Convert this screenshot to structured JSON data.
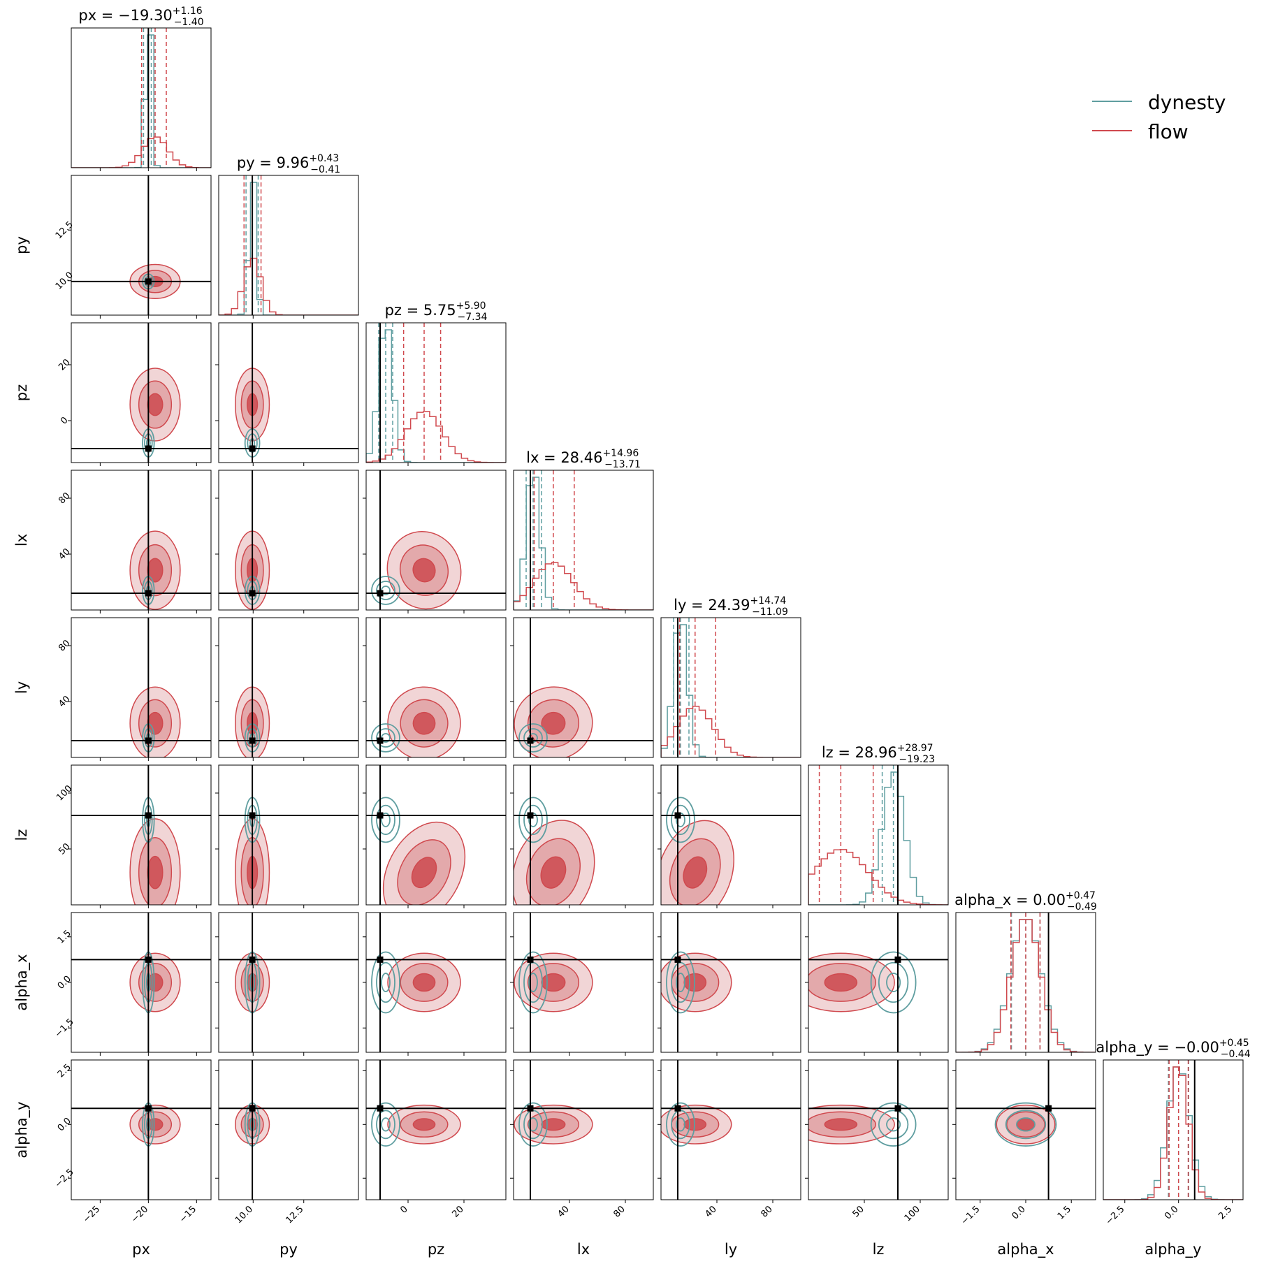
{
  "chart_data": {
    "type": "corner",
    "params": [
      "px",
      "py",
      "pz",
      "lx",
      "ly",
      "lz",
      "alpha_x",
      "alpha_y"
    ],
    "axis_labels": [
      "px",
      "py",
      "pz",
      "lx",
      "ly",
      "lz",
      "alpha_x",
      "alpha_y"
    ],
    "ranges": {
      "px": [
        -28,
        -13.5
      ],
      "py": [
        8.3,
        15.2
      ],
      "pz": [
        -15,
        35
      ],
      "lx": [
        0,
        100
      ],
      "ly": [
        0,
        100
      ],
      "lz": [
        0,
        125
      ],
      "alpha_x": [
        -2.3,
        2.3
      ],
      "alpha_y": [
        -3.5,
        3.0
      ]
    },
    "ticks": {
      "px": {
        "values": [
          -25,
          -20,
          -15
        ],
        "labels": [
          "−25",
          "−20",
          "−15"
        ]
      },
      "py": {
        "values": [
          10.0,
          12.5
        ],
        "labels": [
          "10.0",
          "12.5"
        ]
      },
      "pz": {
        "values": [
          0,
          20
        ],
        "labels": [
          "0",
          "20"
        ]
      },
      "lx": {
        "values": [
          40,
          80
        ],
        "labels": [
          "40",
          "80"
        ]
      },
      "ly": {
        "values": [
          40,
          80
        ],
        "labels": [
          "40",
          "80"
        ]
      },
      "lz": {
        "values": [
          50,
          100
        ],
        "labels": [
          "50",
          "100"
        ]
      },
      "alpha_x": {
        "values": [
          -1.5,
          0.0,
          1.5
        ],
        "labels": [
          "−1.5",
          "0.0",
          "1.5"
        ]
      },
      "alpha_y": {
        "values": [
          -2.5,
          0.0,
          2.5
        ],
        "labels": [
          "−2.5",
          "0.0",
          "2.5"
        ]
      }
    },
    "truths": {
      "px": -20,
      "py": 9.96,
      "pz": -10,
      "lx": 12,
      "ly": 12,
      "lz": 80,
      "alpha_x": 0.75,
      "alpha_y": 0.75
    },
    "titles": [
      {
        "param": "px",
        "base": "px = −19.30",
        "plus": "+1.16",
        "minus": "−1.40"
      },
      {
        "param": "py",
        "base": "py = 9.96",
        "plus": "+0.43",
        "minus": "−0.41"
      },
      {
        "param": "pz",
        "base": "pz = 5.75",
        "plus": "+5.90",
        "minus": "−7.34"
      },
      {
        "param": "lx",
        "base": "lx = 28.46",
        "plus": "+14.96",
        "minus": "−13.71"
      },
      {
        "param": "ly",
        "base": "ly = 24.39",
        "plus": "+14.74",
        "minus": "−11.09"
      },
      {
        "param": "lz",
        "base": "lz = 28.96",
        "plus": "+28.97",
        "minus": "−19.23"
      },
      {
        "param": "alpha_x",
        "base": "alpha_x = 0.00",
        "plus": "+0.47",
        "minus": "−0.49"
      },
      {
        "param": "alpha_y",
        "base": "alpha_y = −0.00",
        "plus": "+0.45",
        "minus": "−0.44"
      }
    ],
    "series": [
      {
        "name": "dynesty",
        "color": "#5f9ea0",
        "filled": false,
        "marginals": {
          "px": {
            "mean": -20.0,
            "sd": 0.3
          },
          "py": {
            "mean": 9.96,
            "sd": 0.18
          },
          "pz": {
            "mean": -8.0,
            "sd": 2.5
          },
          "lx": {
            "mean": 14.0,
            "sd": 5.0
          },
          "ly": {
            "mean": 14.0,
            "sd": 5.0
          },
          "lz": {
            "mean": 76.0,
            "sd": 10.0
          },
          "alpha_x": {
            "mean": 0.0,
            "sd": 0.5
          },
          "alpha_y": {
            "mean": 0.0,
            "sd": 0.5
          }
        },
        "quantiles": {
          "px": [
            -20.5,
            -20.0,
            -19.7
          ],
          "py": [
            9.65,
            9.96,
            10.25
          ],
          "pz": [
            -10.5,
            -8.0,
            -5.5
          ],
          "lx": [
            9.0,
            14.0,
            20.0
          ],
          "ly": [
            9.0,
            14.0,
            20.0
          ],
          "lz": [
            66.0,
            76.0,
            80.0
          ],
          "alpha_x": [
            -0.47,
            0.0,
            0.47
          ],
          "alpha_y": [
            -0.47,
            0.0,
            0.47
          ]
        }
      },
      {
        "name": "flow",
        "color": "#d0494e",
        "filled": true,
        "marginals": {
          "px": {
            "mean": -19.3,
            "sd": 1.3
          },
          "py": {
            "mean": 9.96,
            "sd": 0.42
          },
          "pz": {
            "mean": 5.75,
            "sd": 6.5
          },
          "lx": {
            "mean": 28.46,
            "sd": 14.0
          },
          "ly": {
            "mean": 24.39,
            "sd": 13.0
          },
          "lz": {
            "mean": 28.96,
            "sd": 24.0
          },
          "alpha_x": {
            "mean": 0.0,
            "sd": 0.48
          },
          "alpha_y": {
            "mean": 0.0,
            "sd": 0.45
          }
        },
        "quantiles": {
          "px": [
            -20.7,
            -19.3,
            -18.14
          ],
          "py": [
            9.55,
            9.96,
            10.39
          ],
          "pz": [
            -1.59,
            5.75,
            11.65
          ],
          "lx": [
            14.75,
            28.46,
            43.42
          ],
          "ly": [
            13.3,
            24.39,
            39.13
          ],
          "lz": [
            9.73,
            28.96,
            57.93
          ],
          "alpha_x": [
            -0.49,
            0.0,
            0.47
          ],
          "alpha_y": [
            -0.44,
            0.0,
            0.45
          ]
        },
        "correlations": {
          "pz|lx": 0.6,
          "pz|ly": 0.6,
          "pz|lz": -0.7,
          "lx|lz": -0.5,
          "ly|lz": -0.5,
          "lx|ly": 0.2
        }
      }
    ],
    "legend": {
      "position": "top-right",
      "entries": [
        "dynesty",
        "flow"
      ]
    },
    "grid": false
  }
}
